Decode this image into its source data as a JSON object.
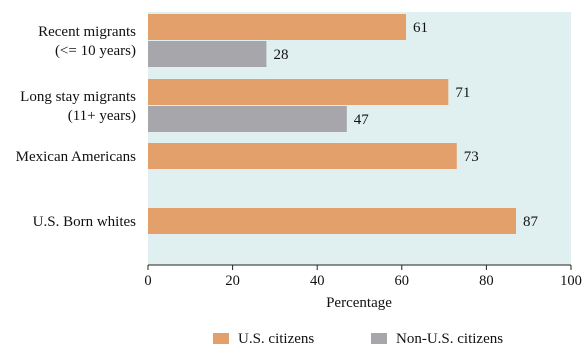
{
  "chart_data": {
    "type": "bar",
    "orientation": "horizontal",
    "categories": [
      [
        "Recent migrants",
        "(<= 10 years)"
      ],
      [
        "Long stay migrants",
        "(11+ years)"
      ],
      [
        "Mexican Americans"
      ],
      [
        "U.S. Born whites"
      ]
    ],
    "series": [
      {
        "name": "U.S. citizens",
        "color": "#e4a06a",
        "values": [
          61,
          71,
          73,
          87
        ]
      },
      {
        "name": "Non-U.S. citizens",
        "color": "#a7a7ab",
        "values": [
          28,
          47,
          null,
          null
        ]
      }
    ],
    "xlabel": "Percentage",
    "xlim": [
      0,
      100
    ],
    "xticks": [
      0,
      20,
      40,
      60,
      80,
      100
    ],
    "legend_position": "bottom",
    "plot_background": "#e0f0f0",
    "grid": false
  }
}
